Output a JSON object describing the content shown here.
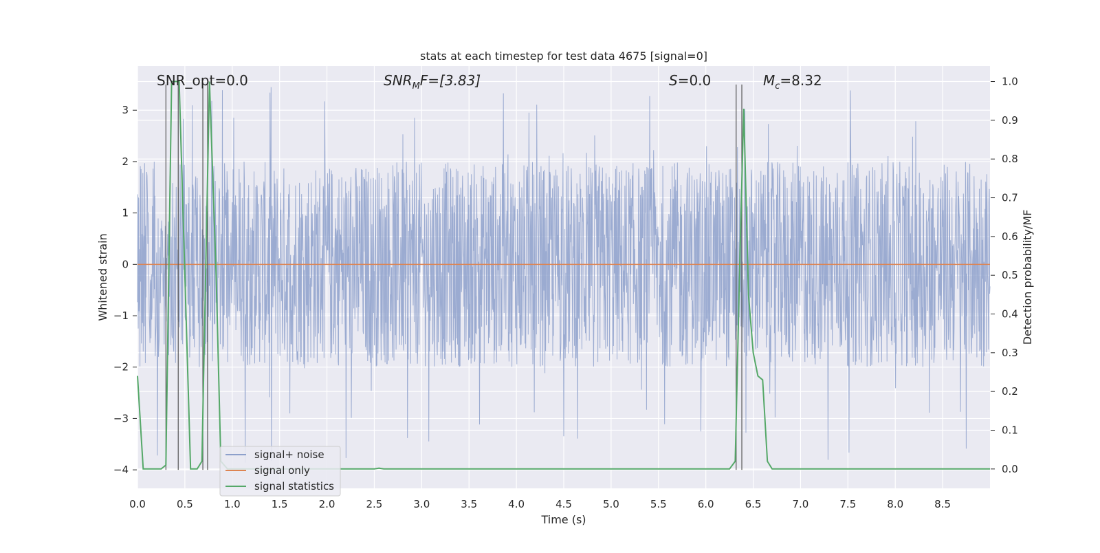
{
  "chart_data": {
    "type": "line",
    "title": "stats at each timestep for test data 4675 [signal=0]",
    "xlabel": "Time (s)",
    "ylabel_left": "Whitened strain",
    "ylabel_right": "Detection probability/MF",
    "xlim": [
      0.0,
      9.0
    ],
    "ylim_left": [
      -4.36,
      3.86
    ],
    "ylim_right": [
      -0.05,
      1.04
    ],
    "x_ticks": [
      0.0,
      0.5,
      1.0,
      1.5,
      2.0,
      2.5,
      3.0,
      3.5,
      4.0,
      4.5,
      5.0,
      5.5,
      6.0,
      6.5,
      7.0,
      7.5,
      8.0,
      8.5
    ],
    "x_tick_labels": [
      "0.0",
      "0.5",
      "1.0",
      "1.5",
      "2.0",
      "2.5",
      "3.0",
      "3.5",
      "4.0",
      "4.5",
      "5.0",
      "5.5",
      "6.0",
      "6.5",
      "7.0",
      "7.5",
      "8.0",
      "8.5"
    ],
    "y_left_ticks": [
      -4,
      -3,
      -2,
      -1,
      0,
      1,
      2,
      3
    ],
    "y_left_tick_labels": [
      "−4",
      "−3",
      "−2",
      "−1",
      "0",
      "1",
      "2",
      "3"
    ],
    "y_right_ticks": [
      0.0,
      0.1,
      0.2,
      0.3,
      0.4,
      0.5,
      0.6,
      0.7,
      0.8,
      0.9,
      1.0
    ],
    "y_right_tick_labels": [
      "0.0",
      "0.1",
      "0.2",
      "0.3",
      "0.4",
      "0.5",
      "0.6",
      "0.7",
      "0.8",
      "0.9",
      "1.0"
    ],
    "grid": true,
    "legend_placement": "lower-left",
    "annotations": {
      "snr_opt": "SNR_opt=0.0",
      "snr_mf_main": "SNR",
      "snr_mf_sub": "M",
      "snr_mf_tail": "F=[3.83]",
      "s_main": "S",
      "s_tail": "=0.0",
      "mc_main": "M",
      "mc_sub": "c",
      "mc_tail": "=8.32"
    },
    "series": [
      {
        "name": "signal+ noise",
        "color": "#8da0cb",
        "description": "whitened noise, dense oscillation roughly within -2 to 2 with spikes to about +/-3.5",
        "envelope": {
          "typical_min": -2.0,
          "typical_max": 2.0,
          "peak_min": -3.9,
          "peak_max": 3.5
        }
      },
      {
        "name": "signal only",
        "color": "#dd8452",
        "x": [
          0.0,
          9.0
        ],
        "y": [
          0.0,
          0.0
        ]
      },
      {
        "name": "signal statistics",
        "color": "#55a868",
        "axis": "right",
        "x": [
          0.0,
          0.06,
          0.25,
          0.3,
          0.36,
          0.44,
          0.5,
          0.56,
          0.63,
          0.68,
          0.76,
          0.83,
          0.88,
          0.95,
          2.5,
          2.55,
          2.6,
          6.25,
          6.31,
          6.36,
          6.4,
          6.45,
          6.5,
          6.55,
          6.6,
          6.65,
          6.7,
          9.0
        ],
        "y": [
          0.24,
          0.0,
          0.0,
          0.01,
          1.0,
          1.0,
          0.5,
          0.0,
          0.0,
          0.02,
          1.0,
          0.5,
          0.02,
          0.0,
          0.0,
          0.002,
          0.0,
          0.0,
          0.02,
          0.55,
          0.93,
          0.45,
          0.3,
          0.24,
          0.23,
          0.02,
          0.0,
          0.0
        ]
      }
    ],
    "vertical_markers": [
      0.3,
      0.43,
      0.69,
      0.74,
      6.32,
      6.38
    ],
    "legend": [
      {
        "label": "signal+ noise",
        "color": "#8da0cb"
      },
      {
        "label": "signal only",
        "color": "#dd8452"
      },
      {
        "label": "signal statistics",
        "color": "#55a868"
      }
    ]
  }
}
